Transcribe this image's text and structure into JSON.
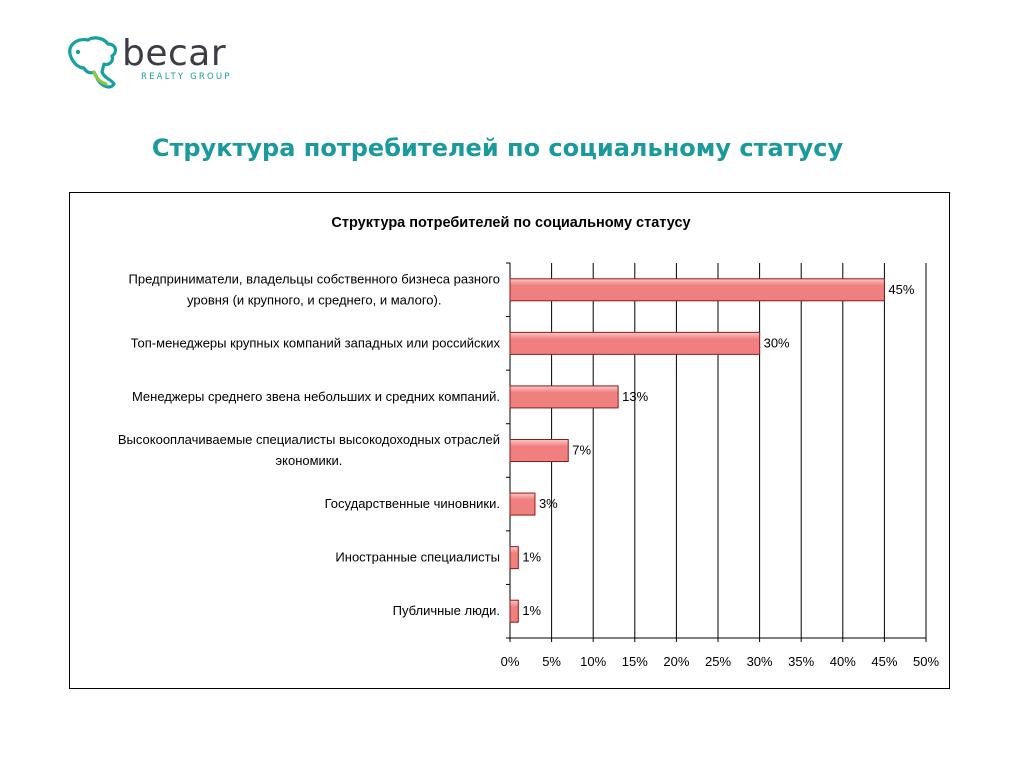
{
  "logo": {
    "word": "becar",
    "sub": "REALTY GROUP",
    "icon": "bear-outline-icon",
    "colors": {
      "teal": "#17a0a0",
      "green": "#8cc63e",
      "dark": "#3c3c46"
    }
  },
  "page": {
    "title": "Структура потребителей по социальному статусу",
    "title_color": "#1a9a9c"
  },
  "chart_data": {
    "type": "bar",
    "orientation": "horizontal",
    "title": "Структура потребителей по социальному статусу",
    "categories": [
      [
        "Предприниматели, владельцы собственного бизнеса разного",
        "уровня (и крупного, и среднего, и малого)."
      ],
      [
        "Топ-менеджеры крупных компаний западных или российских"
      ],
      [
        "Менеджеры среднего звена небольших и средних компаний."
      ],
      [
        "Высокооплачиваемые специалисты высокодоходных отраслей",
        "экономики."
      ],
      [
        "Государственные чиновники."
      ],
      [
        "Иностранные специалисты"
      ],
      [
        "Публичные люди."
      ]
    ],
    "values": [
      45,
      30,
      13,
      7,
      3,
      1,
      1
    ],
    "data_labels": [
      "45%",
      "30%",
      "13%",
      "7%",
      "3%",
      "1%",
      "1%"
    ],
    "xlim": [
      0,
      50
    ],
    "x_ticks": [
      0,
      5,
      10,
      15,
      20,
      25,
      30,
      35,
      40,
      45,
      50
    ],
    "x_tick_labels": [
      "0%",
      "5%",
      "10%",
      "15%",
      "20%",
      "25%",
      "30%",
      "35%",
      "40%",
      "45%",
      "50%"
    ],
    "xlabel": "",
    "ylabel": "",
    "grid": true,
    "legend": "none",
    "bar_color": "#f08080",
    "bar_gradient_light": "#fbc9c9",
    "bar_border": "#8b1a1a"
  }
}
